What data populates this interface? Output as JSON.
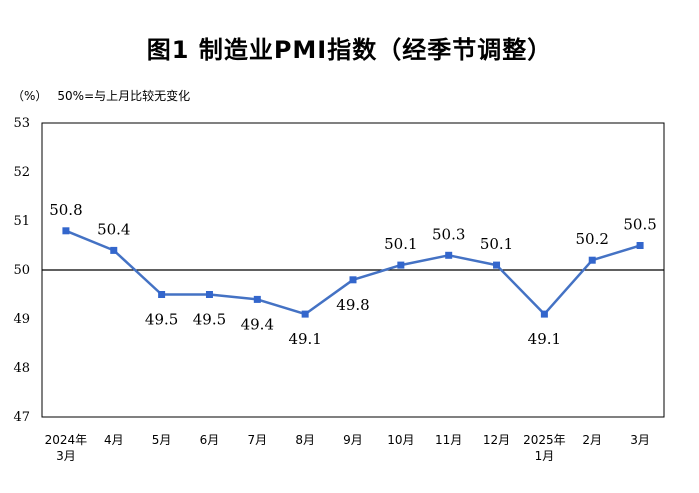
{
  "title": "图1  制造业PMI指数（经季节调整）",
  "unit": "（%）",
  "note": "50%=与上月比较无变化",
  "colors": {
    "line": "#4472C4",
    "marker": "#3366CC",
    "axis": "#000000"
  },
  "chart_data": {
    "type": "line",
    "title": "图1  制造业PMI指数（经季节调整）",
    "ylabel": "（%）",
    "xlabel": "",
    "ylim": [
      47,
      53
    ],
    "yticks": [
      47,
      48,
      49,
      50,
      51,
      52,
      53
    ],
    "reference_line": 50,
    "grid": false,
    "categories": [
      [
        "2024年",
        "3月"
      ],
      [
        "4月"
      ],
      [
        "5月"
      ],
      [
        "6月"
      ],
      [
        "7月"
      ],
      [
        "8月"
      ],
      [
        "9月"
      ],
      [
        "10月"
      ],
      [
        "11月"
      ],
      [
        "12月"
      ],
      [
        "2025年",
        "1月"
      ],
      [
        "2月"
      ],
      [
        "3月"
      ]
    ],
    "series": [
      {
        "values": [
          50.8,
          50.4,
          49.5,
          49.5,
          49.4,
          49.1,
          49.8,
          50.1,
          50.3,
          50.1,
          49.1,
          50.2,
          50.5
        ]
      }
    ],
    "data_labels": [
      "50.8",
      "50.4",
      "49.5",
      "49.5",
      "49.4",
      "49.1",
      "49.8",
      "50.1",
      "50.3",
      "50.1",
      "49.1",
      "50.2",
      "50.5"
    ]
  }
}
